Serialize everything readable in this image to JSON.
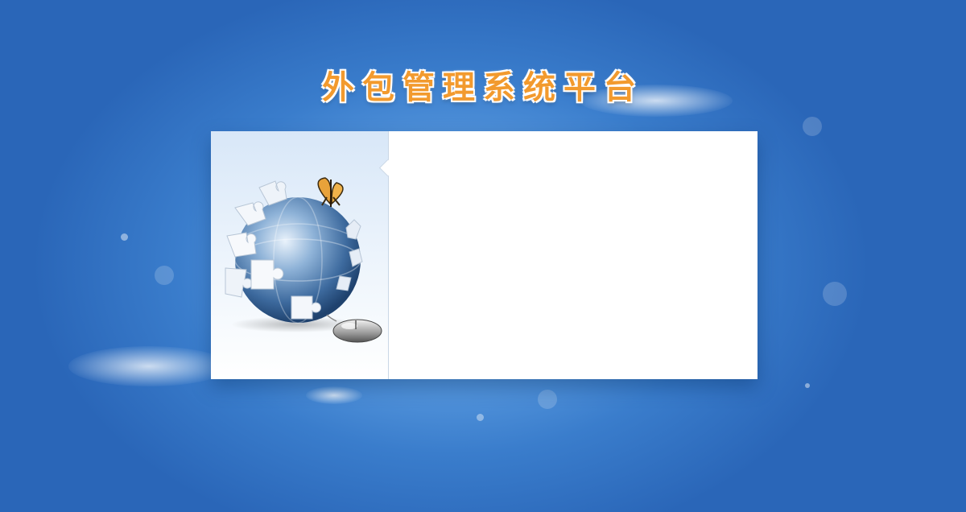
{
  "page": {
    "title": "外包管理系统平台"
  },
  "login_panel": {
    "illustration": "globe-puzzle-butterfly-mouse",
    "form_area": ""
  },
  "colors": {
    "background_blue": "#3a7dcc",
    "title_orange": "#f29a2e",
    "panel_white": "#ffffff"
  }
}
